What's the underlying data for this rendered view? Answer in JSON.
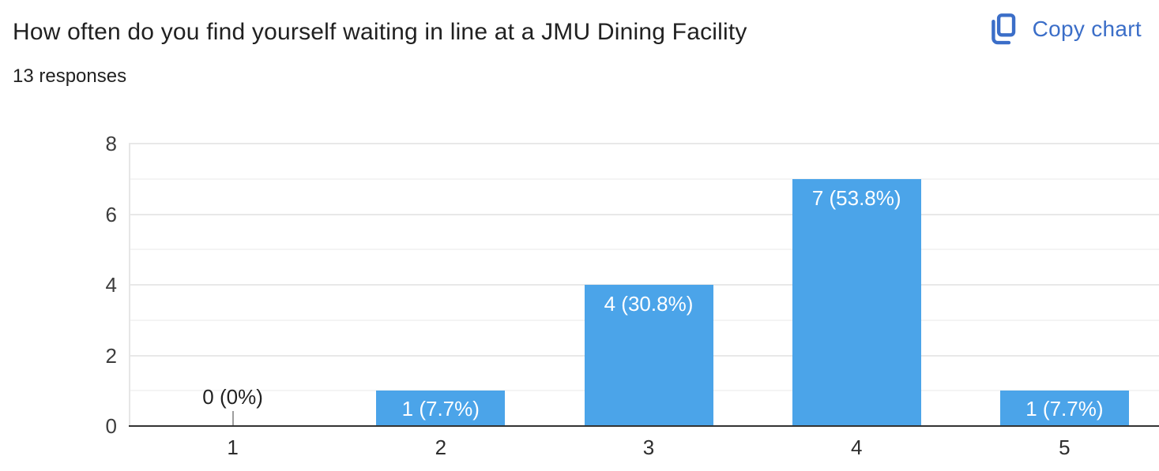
{
  "header": {
    "title": "How often do you find yourself waiting in line at a JMU Dining Facility",
    "responses_count": "13 responses",
    "copy_button_label": "Copy chart",
    "copy_icon": "copy-icon (two overlapping pages)",
    "link_color": "#3b6ec8"
  },
  "chart_data": {
    "type": "bar",
    "title": "How often do you find yourself waiting in line at a JMU Dining Facility",
    "subtitle": "13 responses",
    "categories": [
      "1",
      "2",
      "3",
      "4",
      "5"
    ],
    "values": [
      0,
      1,
      4,
      7,
      1
    ],
    "bar_labels": [
      "0 (0%)",
      "1 (7.7%)",
      "4 (30.8%)",
      "7 (53.8%)",
      "1 (7.7%)"
    ],
    "xlabel": "",
    "ylabel": "",
    "ylim": [
      0,
      8
    ],
    "yticks": [
      0,
      2,
      4,
      6,
      8
    ],
    "minor_grid_values": [
      1,
      3,
      5,
      7
    ],
    "grid": true,
    "legend": "none",
    "colors": {
      "bar": "#4BA4E9",
      "bar_label": "#ffffff",
      "zero_label": "#212121",
      "zero_connector": "#9e9e9e",
      "major_grid": "#e8e8e8",
      "minor_grid": "#f4f4f4",
      "axis_edge": "#e6e6e6",
      "baseline": "#333333",
      "tick_label": "#3d3d3d"
    }
  }
}
